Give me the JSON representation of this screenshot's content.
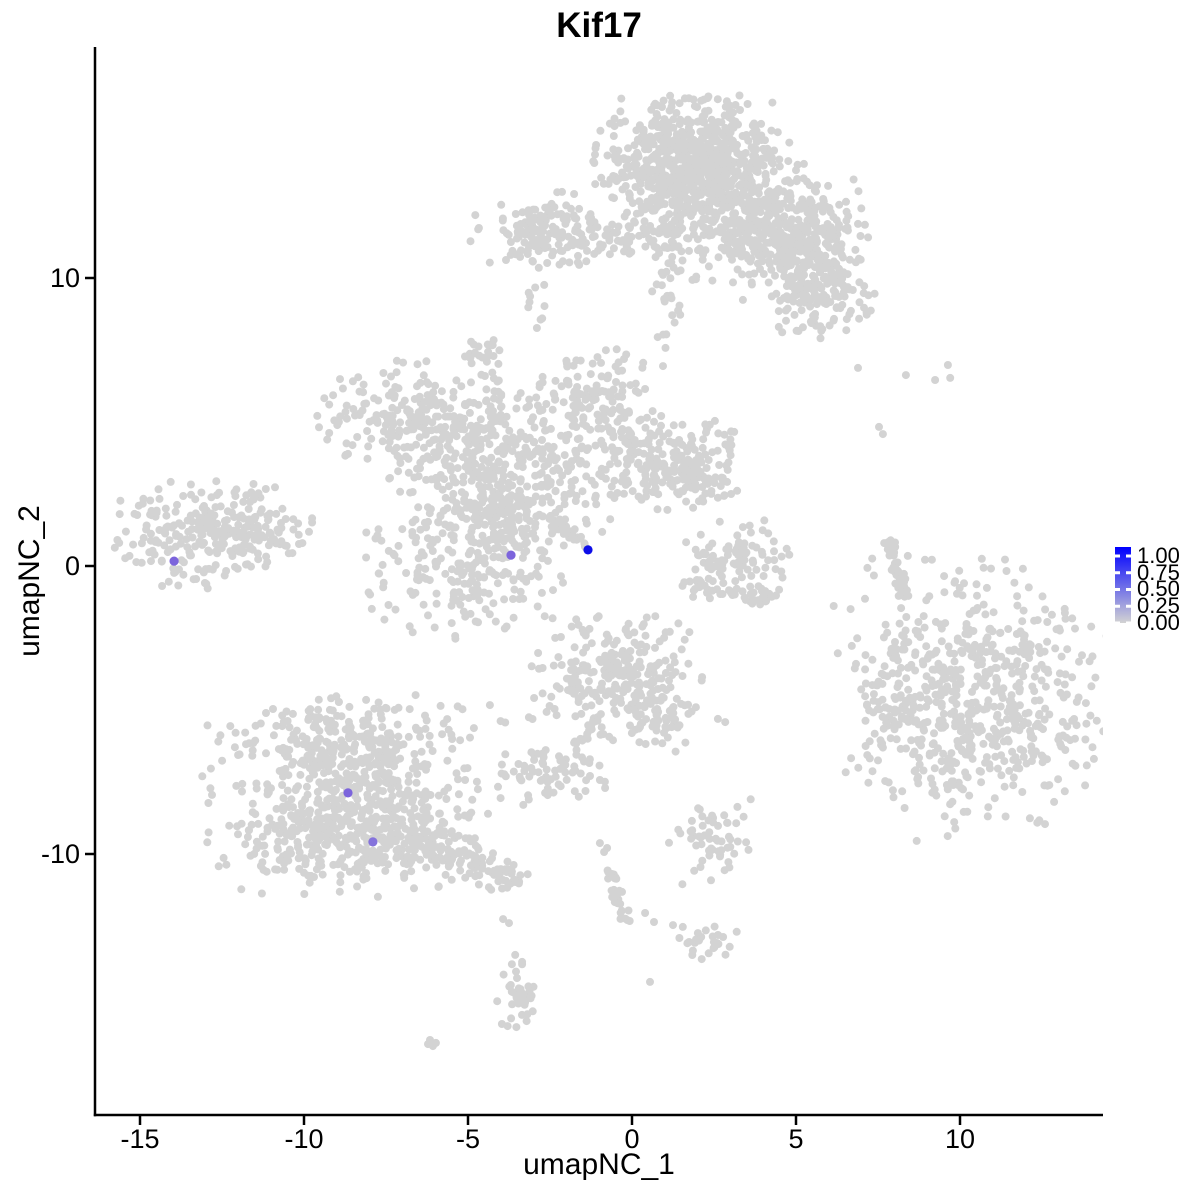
{
  "chart_data": {
    "type": "scatter",
    "title": "Kif17",
    "xlabel": "umapNC_1",
    "ylabel": "umapNC_2",
    "xlim": [
      -16.4,
      14.4
    ],
    "ylim": [
      -19.1,
      18.0
    ],
    "grid": false,
    "x_ticks": [
      {
        "v": -15,
        "label": "-15"
      },
      {
        "v": -10,
        "label": "-10"
      },
      {
        "v": -5,
        "label": "-5"
      },
      {
        "v": 0,
        "label": "0"
      },
      {
        "v": 5,
        "label": "5"
      },
      {
        "v": 10,
        "label": "10"
      }
    ],
    "y_ticks": [
      {
        "v": 10,
        "label": "10"
      },
      {
        "v": 0,
        "label": "0"
      },
      {
        "v": -10,
        "label": "-10"
      }
    ],
    "legend": {
      "position": "right",
      "labels": [
        "1.00",
        "0.75",
        "0.50",
        "0.25",
        "0.00"
      ],
      "values": [
        1.0,
        0.75,
        0.5,
        0.25,
        0.0
      ],
      "low_color": "#D3D3D3",
      "high_color": "#0000FF"
    },
    "point_color_low": "#D3D3D3",
    "clusters": [
      {
        "name": "top-main-upper",
        "cx": 1.68,
        "cy": 14.35,
        "sx": 1.3,
        "sy": 0.95,
        "n": 470
      },
      {
        "name": "top-main-lower",
        "cx": 2.07,
        "cy": 13.0,
        "sx": 1.45,
        "sy": 1.05,
        "n": 330
      },
      {
        "name": "top-branch-mid",
        "cx": 3.45,
        "cy": 11.84,
        "sx": 1.05,
        "sy": 1.05,
        "n": 220
      },
      {
        "name": "top-branch-right",
        "cx": 5.12,
        "cy": 10.97,
        "sx": 0.95,
        "sy": 0.95,
        "n": 180
      },
      {
        "name": "top-right-ext",
        "cx": 5.3,
        "cy": 11.91,
        "sx": 0.8,
        "sy": 0.8,
        "n": 110
      },
      {
        "name": "top-tip",
        "cx": 5.73,
        "cy": 9.41,
        "sx": 0.78,
        "sy": 0.72,
        "n": 130
      },
      {
        "name": "top-left-band",
        "cx": -1.28,
        "cy": 11.49,
        "sx": 1.75,
        "sy": 0.5,
        "n": 150
      },
      {
        "name": "top-left-blob",
        "cx": -2.65,
        "cy": 11.67,
        "sx": 0.62,
        "sy": 0.62,
        "n": 80
      },
      {
        "name": "top-trail",
        "cx": 1.1,
        "cy": 9.6,
        "sx": 0.22,
        "sy": 1.25,
        "n": 30
      },
      {
        "name": "top-small-trail",
        "cx": -2.87,
        "cy": 8.89,
        "sx": 0.17,
        "sy": 0.42,
        "n": 10
      },
      {
        "name": "central-core",
        "cx": -4.02,
        "cy": 3.33,
        "sx": 1.55,
        "sy": 1.22,
        "n": 400
      },
      {
        "name": "central-left-arm",
        "cx": -6.77,
        "cy": 5.24,
        "sx": 1.3,
        "sy": 0.95,
        "n": 190
      },
      {
        "name": "central-upper-arm",
        "cx": -1.13,
        "cy": 5.76,
        "sx": 0.82,
        "sy": 0.82,
        "n": 130
      },
      {
        "name": "central-right-arm",
        "cx": 0.24,
        "cy": 3.68,
        "sx": 1.0,
        "sy": 0.82,
        "n": 150
      },
      {
        "name": "central-right-blob",
        "cx": 1.92,
        "cy": 3.51,
        "sx": 0.72,
        "sy": 0.72,
        "n": 120
      },
      {
        "name": "central-top-dot-blob",
        "cx": -4.48,
        "cy": 7.33,
        "sx": 0.28,
        "sy": 0.33,
        "n": 22
      },
      {
        "name": "central-neck",
        "cx": -3.87,
        "cy": 1.94,
        "sx": 0.45,
        "sy": 0.55,
        "n": 55
      },
      {
        "name": "central-bottom-round",
        "cx": -5.0,
        "cy": 0.21,
        "sx": 1.45,
        "sy": 1.25,
        "n": 260
      },
      {
        "name": "left-main",
        "cx": -13.17,
        "cy": 1.18,
        "sx": 1.35,
        "sy": 0.92,
        "n": 210
      },
      {
        "name": "left-arm",
        "cx": -11.55,
        "cy": 1.11,
        "sx": 0.92,
        "sy": 0.45,
        "n": 70
      },
      {
        "name": "left-tip",
        "cx": -11.65,
        "cy": 2.57,
        "sx": 0.24,
        "sy": 0.24,
        "n": 8
      },
      {
        "name": "mid-crescent-upper",
        "cx": 3.14,
        "cy": 0.49,
        "sx": 0.78,
        "sy": 0.6,
        "n": 85
      },
      {
        "name": "right-big-main",
        "cx": 10.46,
        "cy": -4.65,
        "sx": 2.05,
        "sy": 2.25,
        "n": 620
      },
      {
        "name": "right-big-bump",
        "cx": 7.96,
        "cy": -4.76,
        "sx": 0.45,
        "sy": 0.55,
        "n": 40
      },
      {
        "name": "center-bottom-main",
        "cx": -0.52,
        "cy": -3.78,
        "sx": 1.22,
        "sy": 1.05,
        "n": 250
      },
      {
        "name": "center-bottom-arm",
        "cx": 0.85,
        "cy": -5.17,
        "sx": 0.45,
        "sy": 0.62,
        "n": 50
      },
      {
        "name": "center-bottom-blob",
        "cx": -2.41,
        "cy": -7.19,
        "sx": 0.72,
        "sy": 0.45,
        "n": 65
      },
      {
        "name": "lowerleft-top-lobe",
        "cx": -8.6,
        "cy": -6.2,
        "sx": 1.15,
        "sy": 0.75,
        "n": 160
      },
      {
        "name": "lowerleft-main",
        "cx": -8.29,
        "cy": -7.9,
        "sx": 2.3,
        "sy": 1.65,
        "n": 520
      },
      {
        "name": "lowerleft-bottom",
        "cx": -8.45,
        "cy": -9.51,
        "sx": 1.85,
        "sy": 0.75,
        "n": 200
      },
      {
        "name": "bottom-blob-a",
        "cx": 2.38,
        "cy": -9.51,
        "sx": 0.58,
        "sy": 0.72,
        "n": 60
      },
      {
        "name": "bottom-blob-b",
        "cx": 2.32,
        "cy": -12.99,
        "sx": 0.45,
        "sy": 0.3,
        "n": 26
      },
      {
        "name": "bottom-vert-blob",
        "cx": -3.51,
        "cy": -14.9,
        "sx": 0.28,
        "sy": 0.85,
        "n": 40
      }
    ],
    "streaks": [
      {
        "name": "central-streak",
        "x1": -2.7,
        "y1": 1.9,
        "x2": -1.38,
        "y2": 0.62,
        "jitter": 0.07,
        "n": 32
      },
      {
        "name": "central-vert-trail",
        "x1": -4.2,
        "y1": 6.8,
        "x2": -4.05,
        "y2": 5.1,
        "jitter": 0.08,
        "n": 10
      },
      {
        "name": "crescent-lower-arc",
        "x1": 1.77,
        "y1": -0.69,
        "x2": 4.36,
        "y2": -1.18,
        "jitter": 0.18,
        "n": 55
      },
      {
        "name": "right-thin-arc",
        "x1": 7.8,
        "y1": 0.9,
        "x2": 8.32,
        "y2": -1.01,
        "jitter": 0.09,
        "n": 50
      },
      {
        "name": "lowerleft-tail",
        "x1": -6.8,
        "y1": -9.2,
        "x2": -3.7,
        "y2": -10.9,
        "jitter": 0.33,
        "n": 120
      },
      {
        "name": "center-bottom-trail",
        "x1": -0.9,
        "y1": -5.1,
        "x2": -1.8,
        "y2": -6.4,
        "jitter": 0.1,
        "n": 18
      },
      {
        "name": "bottom-diag-streak",
        "x1": -0.67,
        "y1": -10.73,
        "x2": -0.12,
        "y2": -12.5,
        "jitter": 0.12,
        "n": 28
      }
    ],
    "outliers": [
      [
        6.89,
        6.88
      ],
      [
        8.35,
        6.63
      ],
      [
        9.24,
        6.46
      ],
      [
        9.63,
        6.98
      ],
      [
        9.7,
        6.53
      ],
      [
        7.53,
        4.83
      ],
      [
        7.65,
        4.58
      ],
      [
        8.41,
        0.35
      ],
      [
        8.26,
        -0.59
      ],
      [
        8.63,
        -3.09
      ],
      [
        -3.93,
        -12.26
      ],
      [
        -3.75,
        -12.4
      ],
      [
        -1.28,
        -7.29
      ],
      [
        -0.98,
        -7.43
      ],
      [
        -0.82,
        -7.71
      ],
      [
        -2.65,
        -7.88
      ],
      [
        2.62,
        -5.31
      ],
      [
        2.84,
        -5.42
      ],
      [
        0.4,
        -12.05
      ],
      [
        0.67,
        -12.36
      ],
      [
        1.25,
        -12.47
      ],
      [
        1.55,
        -12.53
      ],
      [
        0.55,
        -14.44
      ],
      [
        -0.98,
        -9.62
      ],
      [
        -0.76,
        -9.79
      ],
      [
        -0.85,
        -9.93
      ],
      [
        -6.16,
        -16.46
      ],
      [
        -5.98,
        -16.56
      ],
      [
        -6.07,
        -16.67
      ],
      [
        -6.22,
        -16.6
      ],
      [
        -13.29,
        -0.45
      ],
      [
        -13.02,
        -0.59
      ]
    ],
    "expressing_cells": [
      {
        "x": -13.96,
        "y": 0.17,
        "value": 0.5,
        "color": "#7C64DC"
      },
      {
        "x": -3.69,
        "y": 0.38,
        "value": 0.5,
        "color": "#7C64DC"
      },
      {
        "x": -1.34,
        "y": 0.56,
        "value": 1.0,
        "color": "#0D0DE8"
      },
      {
        "x": -8.66,
        "y": -7.88,
        "value": 0.5,
        "color": "#7C64DC"
      },
      {
        "x": -7.9,
        "y": -9.58,
        "value": 0.45,
        "color": "#8573DC"
      }
    ]
  }
}
